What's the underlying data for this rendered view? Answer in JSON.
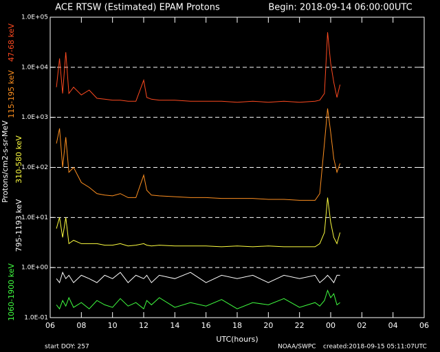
{
  "chart_data": {
    "type": "line",
    "title": "ACE RTSW (Estimated) EPAM Protons",
    "subtitle": "Begin: 2018-09-14 06:00:00UTC",
    "xlabel": "UTC(hours)",
    "ylabel": "Protons/cm2-s-sr-MeV",
    "footer_left": "start DOY:  257",
    "footer_center": "NOAA/SWPC",
    "footer_right": "created:2018-09-15 05:11:07UTC",
    "ylog": true,
    "grid": true,
    "xlim": [
      0,
      24
    ],
    "xticks": [
      {
        "value": 0,
        "label": "06"
      },
      {
        "value": 2,
        "label": "08"
      },
      {
        "value": 4,
        "label": "10"
      },
      {
        "value": 6,
        "label": "12"
      },
      {
        "value": 8,
        "label": "14"
      },
      {
        "value": 10,
        "label": "16"
      },
      {
        "value": 12,
        "label": "18"
      },
      {
        "value": 14,
        "label": "20"
      },
      {
        "value": 16,
        "label": "22"
      },
      {
        "value": 18,
        "label": "00"
      },
      {
        "value": 20,
        "label": "02"
      },
      {
        "value": 22,
        "label": "04"
      },
      {
        "value": 24,
        "label": "06"
      }
    ],
    "ylim": [
      0.1,
      100000
    ],
    "yticks": [
      {
        "value": 0.1,
        "label": "1.0E-01"
      },
      {
        "value": 1,
        "label": "1.0E+00"
      },
      {
        "value": 10,
        "label": "1.0E+01"
      },
      {
        "value": 100,
        "label": "1.0E+02"
      },
      {
        "value": 1000,
        "label": "1.0E+03"
      },
      {
        "value": 10000,
        "label": "1.0E+04"
      },
      {
        "value": 100000,
        "label": "1.0E+05"
      }
    ],
    "x": [
      0.4,
      0.6,
      0.8,
      1.0,
      1.2,
      1.5,
      2.0,
      2.5,
      3.0,
      3.5,
      4.0,
      4.5,
      5.0,
      5.5,
      6.0,
      6.2,
      6.5,
      7,
      8,
      9,
      10,
      11,
      12,
      13,
      14,
      15,
      16,
      17,
      17.3,
      17.6,
      17.8,
      18.0,
      18.2,
      18.4,
      18.6
    ],
    "series": [
      {
        "name": "47-68 keV",
        "color": "#ff4a20",
        "values": [
          4000,
          15000,
          3000,
          20000,
          3000,
          4000,
          2800,
          3500,
          2400,
          2300,
          2200,
          2200,
          2100,
          2100,
          5500,
          2500,
          2300,
          2200,
          2200,
          2100,
          2100,
          2100,
          2000,
          2100,
          2000,
          2100,
          2000,
          2100,
          2200,
          3000,
          50000,
          12000,
          5000,
          2500,
          4500
        ]
      },
      {
        "name": "115-195 keV",
        "color": "#ff9020",
        "values": [
          300,
          600,
          100,
          400,
          80,
          100,
          50,
          40,
          30,
          28,
          27,
          30,
          25,
          25,
          70,
          35,
          28,
          27,
          26,
          25,
          25,
          24,
          24,
          24,
          23,
          23,
          22,
          22,
          30,
          300,
          1500,
          500,
          150,
          80,
          120
        ]
      },
      {
        "name": "310-580 keV",
        "color": "#ffff40",
        "values": [
          6,
          10,
          4,
          10,
          3,
          3.5,
          3,
          3,
          3,
          2.8,
          2.8,
          3,
          2.7,
          2.8,
          3,
          2.8,
          2.7,
          2.8,
          2.7,
          2.7,
          2.7,
          2.6,
          2.7,
          2.6,
          2.7,
          2.6,
          2.6,
          2.6,
          3,
          5,
          25,
          8,
          4,
          3,
          5
        ]
      },
      {
        "name": "795-1193 keV",
        "color": "#ffffff",
        "values": [
          0.6,
          0.5,
          0.8,
          0.6,
          0.7,
          0.5,
          0.7,
          0.6,
          0.5,
          0.7,
          0.6,
          0.8,
          0.5,
          0.7,
          0.6,
          0.7,
          0.5,
          0.7,
          0.6,
          0.8,
          0.5,
          0.7,
          0.6,
          0.7,
          0.5,
          0.7,
          0.6,
          0.7,
          0.5,
          0.6,
          0.7,
          0.6,
          0.5,
          0.7,
          0.7
        ]
      },
      {
        "name": "1060-1900 keV",
        "color": "#40ff40",
        "values": [
          0.18,
          0.15,
          0.22,
          0.17,
          0.25,
          0.16,
          0.2,
          0.15,
          0.22,
          0.18,
          0.16,
          0.24,
          0.17,
          0.2,
          0.15,
          0.22,
          0.18,
          0.25,
          0.16,
          0.2,
          0.17,
          0.23,
          0.15,
          0.2,
          0.18,
          0.24,
          0.16,
          0.2,
          0.17,
          0.22,
          0.35,
          0.25,
          0.3,
          0.18,
          0.2
        ]
      }
    ]
  }
}
